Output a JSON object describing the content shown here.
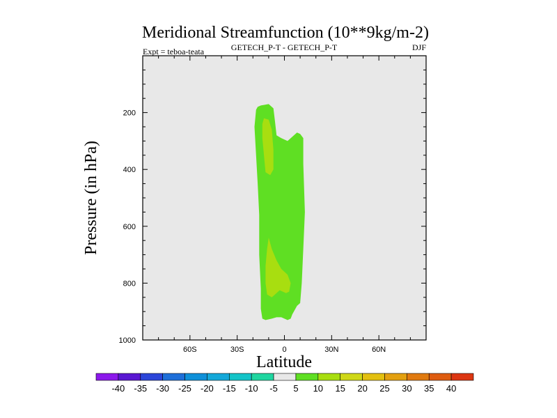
{
  "chart_data": {
    "type": "contour",
    "title": "Meridional Streamfunction (10**9kg/m-2)",
    "left_label": "Expt = teboa-teata",
    "center_label": "GETECH_P-T - GETECH_P-T",
    "right_label": "DJF",
    "xlabel": "Latitude",
    "ylabel": "Pressure (in hPa)",
    "xlim": [
      -90,
      90
    ],
    "ylim": [
      1000,
      0
    ],
    "x_ticks": [
      {
        "value": -60,
        "label": "60S"
      },
      {
        "value": -30,
        "label": "30S"
      },
      {
        "value": 0,
        "label": "0"
      },
      {
        "value": 30,
        "label": "30N"
      },
      {
        "value": 60,
        "label": "60N"
      }
    ],
    "y_ticks": [
      {
        "value": 200,
        "label": "200"
      },
      {
        "value": 400,
        "label": "400"
      },
      {
        "value": 600,
        "label": "600"
      },
      {
        "value": 800,
        "label": "800"
      },
      {
        "value": 1000,
        "label": "1000"
      }
    ],
    "background_color": "#e8e8e8",
    "regions": [
      {
        "name": "5 to 10",
        "color": "#5fdf23",
        "points": [
          [
            -17,
            180
          ],
          [
            -15,
            175
          ],
          [
            -10,
            170
          ],
          [
            -7,
            185
          ],
          [
            -6,
            230
          ],
          [
            -5,
            280
          ],
          [
            -2,
            290
          ],
          [
            2,
            300
          ],
          [
            6,
            280
          ],
          [
            8,
            270
          ],
          [
            10,
            275
          ],
          [
            12,
            290
          ],
          [
            12,
            380
          ],
          [
            13,
            550
          ],
          [
            12,
            680
          ],
          [
            11,
            800
          ],
          [
            10,
            870
          ],
          [
            8,
            880
          ],
          [
            5,
            910
          ],
          [
            4,
            925
          ],
          [
            2,
            930
          ],
          [
            -2,
            920
          ],
          [
            -5,
            920
          ],
          [
            -8,
            925
          ],
          [
            -12,
            930
          ],
          [
            -14,
            925
          ],
          [
            -15,
            890
          ],
          [
            -15,
            820
          ],
          [
            -16,
            700
          ],
          [
            -16,
            560
          ],
          [
            -17,
            450
          ],
          [
            -18,
            350
          ],
          [
            -19,
            250
          ],
          [
            -18,
            190
          ]
        ]
      },
      {
        "name": "10 to 15 upper",
        "color": "#a8de10",
        "points": [
          [
            -14,
            240
          ],
          [
            -13,
            220
          ],
          [
            -10,
            225
          ],
          [
            -8,
            260
          ],
          [
            -7,
            330
          ],
          [
            -7,
            400
          ],
          [
            -9,
            420
          ],
          [
            -12,
            410
          ],
          [
            -13,
            350
          ],
          [
            -14,
            290
          ]
        ]
      },
      {
        "name": "10 to 15 lower",
        "color": "#a8de10",
        "points": [
          [
            -10,
            640
          ],
          [
            -8,
            680
          ],
          [
            -5,
            720
          ],
          [
            -2,
            750
          ],
          [
            2,
            770
          ],
          [
            4,
            800
          ],
          [
            3,
            830
          ],
          [
            1,
            835
          ],
          [
            -3,
            825
          ],
          [
            -6,
            840
          ],
          [
            -8,
            850
          ],
          [
            -11,
            840
          ],
          [
            -12,
            800
          ],
          [
            -12,
            740
          ],
          [
            -11,
            680
          ]
        ]
      }
    ],
    "colorbar": {
      "levels": [
        "-40",
        "-35",
        "-30",
        "-25",
        "-20",
        "-15",
        "-10",
        "-5",
        "5",
        "10",
        "15",
        "20",
        "25",
        "30",
        "35",
        "40"
      ],
      "colors": [
        "#8c19eb",
        "#5a18d2",
        "#2c46d9",
        "#1e6fd9",
        "#0f90d9",
        "#14a8d9",
        "#14c4c8",
        "#20d6a0",
        "#e8e8e8",
        "#5fdf23",
        "#a8de10",
        "#cfd818",
        "#e3c010",
        "#e3a010",
        "#e07a10",
        "#de5c10",
        "#dc3612"
      ]
    }
  }
}
